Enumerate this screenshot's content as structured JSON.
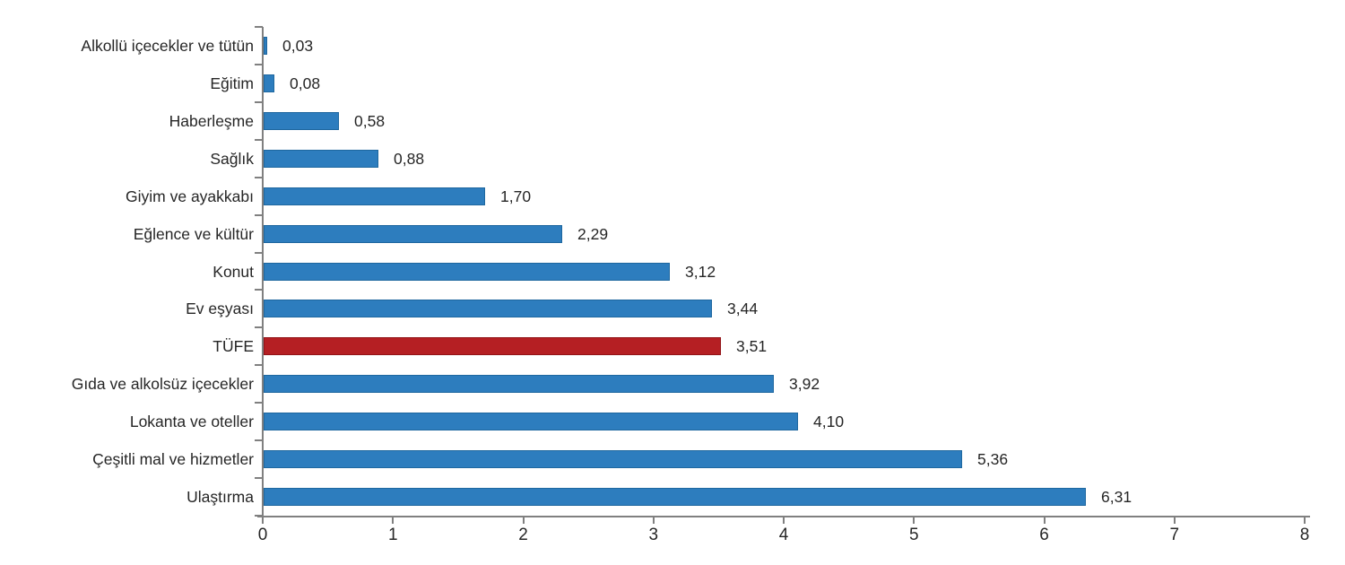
{
  "chart_data": {
    "type": "bar",
    "orientation": "horizontal",
    "title": "",
    "xlabel": "",
    "ylabel": "",
    "categories": [
      "Alkollü içecekler ve tütün",
      "Eğitim",
      "Haberleşme",
      "Sağlık",
      "Giyim ve ayakkabı",
      "Eğlence ve kültür",
      "Konut",
      "Ev eşyası",
      "TÜFE",
      "Gıda ve alkolsüz içecekler",
      "Lokanta ve oteller",
      "Çeşitli mal ve hizmetler",
      "Ulaştırma"
    ],
    "values": [
      0.03,
      0.08,
      0.58,
      0.88,
      1.7,
      2.29,
      3.12,
      3.44,
      3.51,
      3.92,
      4.1,
      5.36,
      6.31
    ],
    "value_labels": [
      "0,03",
      "0,08",
      "0,58",
      "0,88",
      "1,70",
      "2,29",
      "3,12",
      "3,44",
      "3,51",
      "3,92",
      "4,10",
      "5,36",
      "6,31"
    ],
    "highlight_category": "TÜFE",
    "highlight_index": 8,
    "bar_color": "#2d7dbe",
    "highlight_color": "#b51f23",
    "axis_color": "#808080",
    "text_color": "#262626",
    "xlim": [
      0,
      8
    ],
    "x_ticks": [
      0,
      1,
      2,
      3,
      4,
      5,
      6,
      7,
      8
    ],
    "grid": false,
    "legend": false
  }
}
